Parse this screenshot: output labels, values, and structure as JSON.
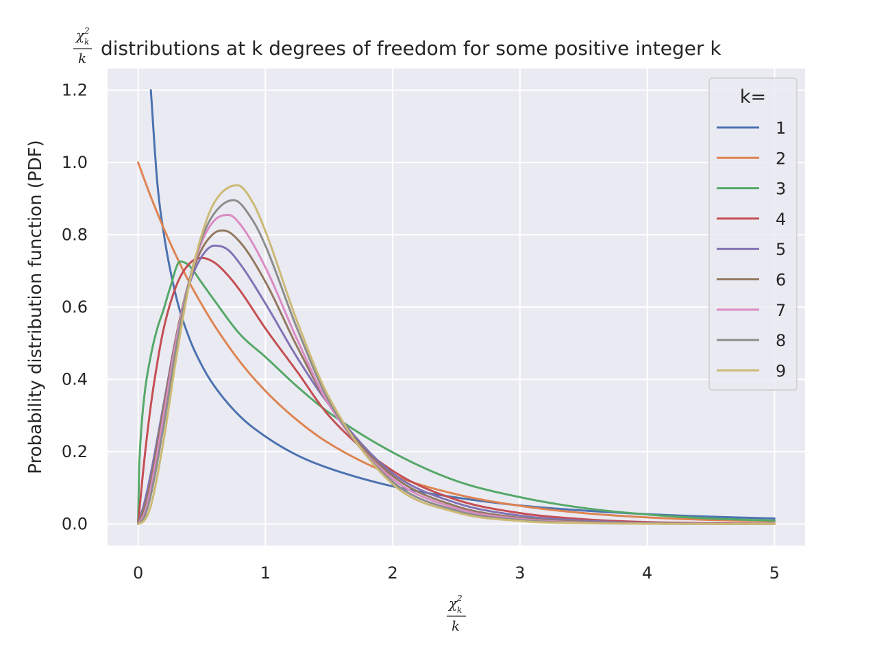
{
  "chart_data": {
    "type": "line",
    "title": "distributions at k degrees of freedom for some positive integer k",
    "title_math": {
      "numerator": "χ",
      "sub": "k",
      "sup": "2",
      "denominator": "k"
    },
    "xlabel_math": {
      "numerator": "χ",
      "sub": "k",
      "sup": "2",
      "denominator": "k"
    },
    "ylabel": "Probability distribution function (PDF)",
    "xlim": [
      -0.24,
      5.24
    ],
    "ylim": [
      -0.06,
      1.26
    ],
    "xticks": [
      0,
      1,
      2,
      3,
      4,
      5
    ],
    "xtick_labels": [
      "0",
      "1",
      "2",
      "3",
      "4",
      "5"
    ],
    "yticks": [
      0.0,
      0.2,
      0.4,
      0.6,
      0.8,
      1.0,
      1.2
    ],
    "ytick_labels": [
      "0.0",
      "0.2",
      "0.4",
      "0.6",
      "0.8",
      "1.0",
      "1.2"
    ],
    "grid": true,
    "background": "#eaeaf2",
    "legend": {
      "title": "k=",
      "position": "top-right"
    },
    "series": [
      {
        "name": "1",
        "color": "#4c72b0",
        "x": [
          0.1,
          0.15,
          0.2,
          0.3,
          0.4,
          0.5,
          0.6,
          0.8,
          1.0,
          1.25,
          1.5,
          2.0,
          2.5,
          3.0,
          3.5,
          4.0,
          4.5,
          5.0
        ],
        "y": [
          1.2,
          0.947,
          0.807,
          0.627,
          0.516,
          0.439,
          0.381,
          0.298,
          0.242,
          0.19,
          0.154,
          0.104,
          0.073,
          0.051,
          0.037,
          0.027,
          0.02,
          0.015
        ]
      },
      {
        "name": "2",
        "color": "#dd8452",
        "x": [
          0,
          0.1,
          0.2,
          0.3,
          0.4,
          0.5,
          0.6,
          0.8,
          1.0,
          1.25,
          1.5,
          2.0,
          2.5,
          3.0,
          3.5,
          4.0,
          4.5,
          5.0
        ],
        "y": [
          1.0,
          0.905,
          0.819,
          0.741,
          0.67,
          0.607,
          0.549,
          0.449,
          0.368,
          0.287,
          0.223,
          0.135,
          0.082,
          0.05,
          0.03,
          0.018,
          0.011,
          0.007
        ]
      },
      {
        "name": "3",
        "color": "#55a868",
        "x": [
          0,
          0.005,
          0.02,
          0.05,
          0.1,
          0.15,
          0.2,
          0.25,
          0.33,
          0.4,
          0.5,
          0.6,
          0.8,
          1.0,
          1.25,
          1.5,
          2.0,
          2.5,
          3.0,
          3.5,
          4.0,
          4.5,
          5.0
        ],
        "y": [
          0,
          0.12,
          0.236,
          0.357,
          0.466,
          0.54,
          0.593,
          0.652,
          0.726,
          0.715,
          0.667,
          0.618,
          0.525,
          0.462,
          0.38,
          0.308,
          0.198,
          0.119,
          0.074,
          0.044,
          0.026,
          0.015,
          0.009
        ]
      },
      {
        "name": "4",
        "color": "#c44e52",
        "x": [
          0,
          0.05,
          0.1,
          0.15,
          0.2,
          0.3,
          0.4,
          0.5,
          0.6,
          0.7,
          0.8,
          1.0,
          1.25,
          1.5,
          2.0,
          2.5,
          3.0,
          3.5,
          4.0,
          4.5,
          5.0
        ],
        "y": [
          0,
          0.181,
          0.328,
          0.444,
          0.539,
          0.659,
          0.719,
          0.736,
          0.723,
          0.69,
          0.646,
          0.541,
          0.421,
          0.299,
          0.147,
          0.067,
          0.03,
          0.013,
          0.005,
          0.002,
          0.001
        ]
      },
      {
        "name": "5",
        "color": "#8172b3",
        "x": [
          0,
          0.05,
          0.1,
          0.2,
          0.3,
          0.4,
          0.5,
          0.6,
          0.7,
          0.8,
          1.0,
          1.25,
          1.5,
          2.0,
          2.5,
          3.0,
          3.5,
          4.0,
          4.5,
          5.0
        ],
        "y": [
          0,
          0.06,
          0.14,
          0.33,
          0.52,
          0.66,
          0.74,
          0.77,
          0.76,
          0.72,
          0.61,
          0.46,
          0.33,
          0.14,
          0.058,
          0.023,
          0.009,
          0.003,
          0.001,
          0.0005
        ]
      },
      {
        "name": "6",
        "color": "#937860",
        "x": [
          0,
          0.05,
          0.1,
          0.2,
          0.3,
          0.4,
          0.5,
          0.6,
          0.67,
          0.8,
          1.0,
          1.25,
          1.5,
          2.0,
          2.5,
          3.0,
          3.5,
          4.0,
          4.5,
          5.0
        ],
        "y": [
          0,
          0.045,
          0.12,
          0.32,
          0.52,
          0.67,
          0.76,
          0.805,
          0.812,
          0.78,
          0.67,
          0.49,
          0.33,
          0.133,
          0.049,
          0.017,
          0.006,
          0.002,
          0.0006,
          0.0002
        ]
      },
      {
        "name": "7",
        "color": "#da8bc3",
        "x": [
          0,
          0.05,
          0.1,
          0.2,
          0.3,
          0.4,
          0.5,
          0.6,
          0.71,
          0.8,
          1.0,
          1.25,
          1.5,
          2.0,
          2.5,
          3.0,
          3.5,
          4.0,
          4.5,
          5.0
        ],
        "y": [
          0,
          0.03,
          0.1,
          0.3,
          0.51,
          0.67,
          0.78,
          0.84,
          0.855,
          0.83,
          0.71,
          0.51,
          0.33,
          0.125,
          0.043,
          0.014,
          0.004,
          0.0012,
          0.0003,
          0.0001
        ]
      },
      {
        "name": "8",
        "color": "#8c8c8c",
        "x": [
          0,
          0.05,
          0.1,
          0.2,
          0.3,
          0.4,
          0.5,
          0.6,
          0.75,
          0.9,
          1.0,
          1.25,
          1.5,
          2.0,
          2.5,
          3.0,
          3.5,
          4.0,
          4.5,
          5.0
        ],
        "y": [
          0,
          0.02,
          0.08,
          0.27,
          0.49,
          0.67,
          0.79,
          0.86,
          0.896,
          0.84,
          0.77,
          0.54,
          0.34,
          0.117,
          0.037,
          0.011,
          0.003,
          0.0008,
          0.0002,
          0.0001
        ]
      },
      {
        "name": "9",
        "color": "#ccb974",
        "x": [
          0,
          0.05,
          0.1,
          0.2,
          0.3,
          0.4,
          0.5,
          0.6,
          0.78,
          0.9,
          1.0,
          1.25,
          1.5,
          2.0,
          2.5,
          3.0,
          3.5,
          4.0,
          4.5,
          5.0
        ],
        "y": [
          0,
          0.01,
          0.05,
          0.23,
          0.46,
          0.66,
          0.8,
          0.89,
          0.937,
          0.89,
          0.81,
          0.56,
          0.35,
          0.11,
          0.032,
          0.008,
          0.002,
          0.0005,
          0.0001,
          0.0
        ]
      }
    ]
  }
}
